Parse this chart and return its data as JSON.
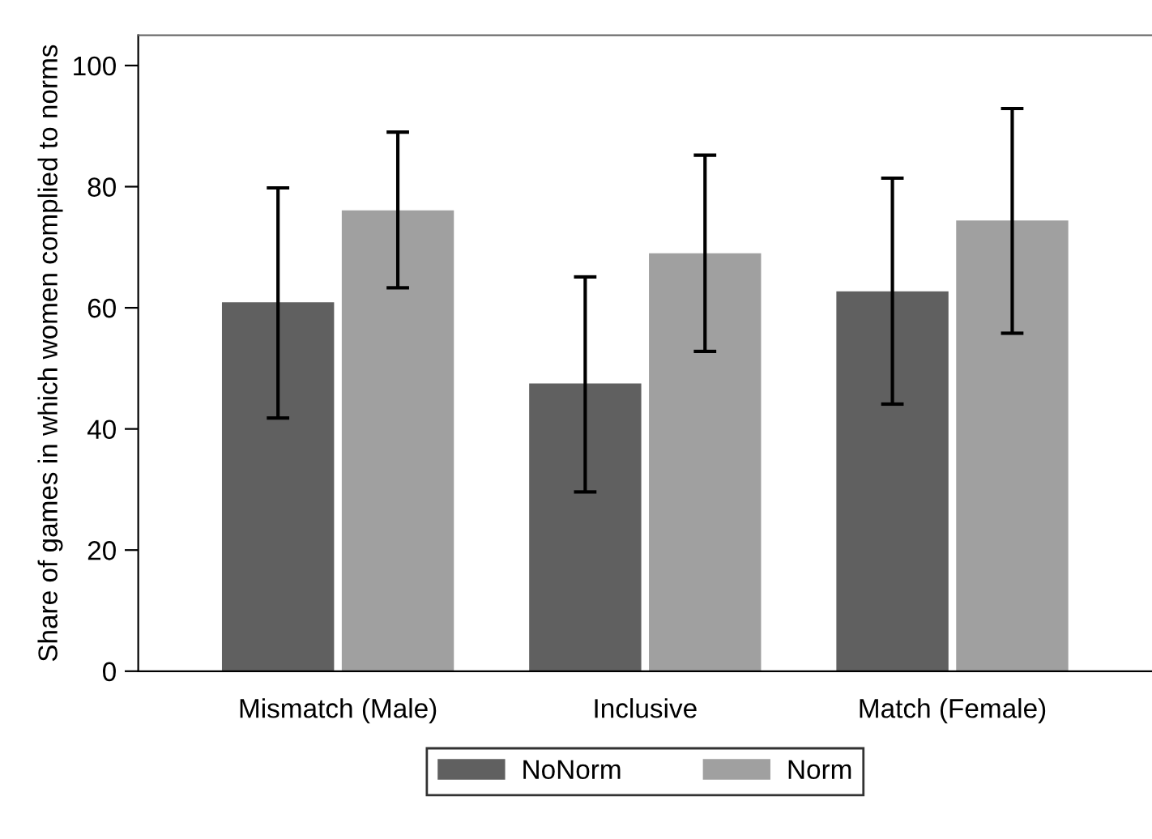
{
  "chart_data": {
    "type": "bar",
    "ylabel": "Share of games in which women complied to norms",
    "categories": [
      "Mismatch (Male)",
      "Inclusive",
      "Match (Female)"
    ],
    "series": [
      {
        "name": "NoNorm",
        "color": "#606060",
        "values": [
          60.9,
          47.5,
          62.7
        ],
        "errors": [
          [
            41.8,
            79.8
          ],
          [
            29.6,
            65.1
          ],
          [
            44.1,
            81.4
          ]
        ]
      },
      {
        "name": "Norm",
        "color": "#a0a0a0",
        "values": [
          76.1,
          69.0,
          74.4
        ],
        "errors": [
          [
            63.3,
            89.0
          ],
          [
            52.8,
            85.2
          ],
          [
            55.8,
            92.9
          ]
        ]
      }
    ],
    "ylim": [
      0,
      105
    ],
    "yticks": [
      0,
      20,
      40,
      60,
      80,
      100
    ],
    "grid": false,
    "legend": "bottom"
  }
}
